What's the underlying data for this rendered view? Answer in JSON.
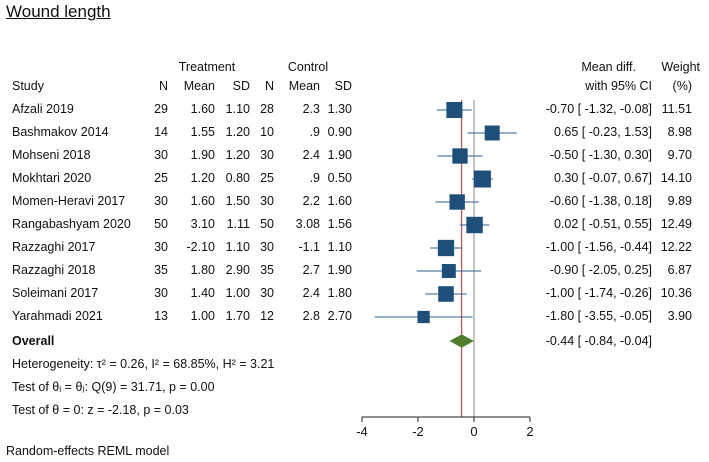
{
  "title": "Wound length",
  "headers": {
    "treatment": "Treatment",
    "control": "Control",
    "study": "Study",
    "n": "N",
    "mean": "Mean",
    "sd": "SD",
    "mean_diff": "Mean diff.",
    "ci": "with 95% CI",
    "weight": "Weight",
    "weight_unit": "(%)"
  },
  "chart_data": {
    "type": "forest",
    "title": "Wound length",
    "xlim": [
      -4,
      2
    ],
    "xticks": [
      -4,
      -2,
      0,
      2
    ],
    "studies": [
      {
        "label": "Afzali 2019",
        "tn": "29",
        "tmean": "1.60",
        "tsd": "1.10",
        "cn": "28",
        "cmean": "2.3",
        "csd": "1.30",
        "md": -0.7,
        "lo": -1.32,
        "hi": -0.08,
        "ci_text": "-0.70 [ -1.32, -0.08]",
        "weight": 11.51,
        "weight_text": "11.51"
      },
      {
        "label": "Bashmakov 2014",
        "tn": "14",
        "tmean": "1.55",
        "tsd": "1.20",
        "cn": "10",
        "cmean": ".9",
        "csd": "0.90",
        "md": 0.65,
        "lo": -0.23,
        "hi": 1.53,
        "ci_text": "0.65 [ -0.23, 1.53]",
        "weight": 8.98,
        "weight_text": "8.98"
      },
      {
        "label": "Mohseni 2018",
        "tn": "30",
        "tmean": "1.90",
        "tsd": "1.20",
        "cn": "30",
        "cmean": "2.4",
        "csd": "1.90",
        "md": -0.5,
        "lo": -1.3,
        "hi": 0.3,
        "ci_text": "-0.50 [ -1.30, 0.30]",
        "weight": 9.7,
        "weight_text": "9.70"
      },
      {
        "label": "Mokhtari 2020",
        "tn": "25",
        "tmean": "1.20",
        "tsd": "0.80",
        "cn": "25",
        "cmean": ".9",
        "csd": "0.50",
        "md": 0.3,
        "lo": -0.07,
        "hi": 0.67,
        "ci_text": "0.30 [ -0.07, 0.67]",
        "weight": 14.1,
        "weight_text": "14.10"
      },
      {
        "label": "Momen-Heravi 2017",
        "tn": "30",
        "tmean": "1.60",
        "tsd": "1.50",
        "cn": "30",
        "cmean": "2.2",
        "csd": "1.60",
        "md": -0.6,
        "lo": -1.38,
        "hi": 0.18,
        "ci_text": "-0.60 [ -1.38, 0.18]",
        "weight": 9.89,
        "weight_text": "9.89"
      },
      {
        "label": "Rangabashyam 2020",
        "tn": "50",
        "tmean": "3.10",
        "tsd": "1.11",
        "cn": "50",
        "cmean": "3.08",
        "csd": "1.56",
        "md": 0.02,
        "lo": -0.51,
        "hi": 0.55,
        "ci_text": "0.02 [ -0.51, 0.55]",
        "weight": 12.49,
        "weight_text": "12.49"
      },
      {
        "label": "Razzaghi 2017",
        "tn": "30",
        "tmean": "-2.10",
        "tsd": "1.10",
        "cn": "30",
        "cmean": "-1.1",
        "csd": "1.10",
        "md": -1.0,
        "lo": -1.56,
        "hi": -0.44,
        "ci_text": "-1.00 [ -1.56, -0.44]",
        "weight": 12.22,
        "weight_text": "12.22"
      },
      {
        "label": "Razzaghi 2018",
        "tn": "35",
        "tmean": "1.80",
        "tsd": "2.90",
        "cn": "35",
        "cmean": "2.7",
        "csd": "1.90",
        "md": -0.9,
        "lo": -2.05,
        "hi": 0.25,
        "ci_text": "-0.90 [ -2.05, 0.25]",
        "weight": 6.87,
        "weight_text": "6.87"
      },
      {
        "label": "Soleimani 2017",
        "tn": "30",
        "tmean": "1.40",
        "tsd": "1.00",
        "cn": "30",
        "cmean": "2.4",
        "csd": "1.80",
        "md": -1.0,
        "lo": -1.74,
        "hi": -0.26,
        "ci_text": "-1.00 [ -1.74, -0.26]",
        "weight": 10.36,
        "weight_text": "10.36"
      },
      {
        "label": "Yarahmadi 2021",
        "tn": "13",
        "tmean": "1.00",
        "tsd": "1.70",
        "cn": "12",
        "cmean": "2.8",
        "csd": "2.70",
        "md": -1.8,
        "lo": -3.55,
        "hi": -0.05,
        "ci_text": "-1.80 [ -3.55, -0.05]",
        "weight": 3.9,
        "weight_text": "3.90"
      }
    ],
    "overall": {
      "label": "Overall",
      "md": -0.44,
      "lo": -0.84,
      "hi": -0.04,
      "ci_text": "-0.44 [ -0.84, -0.04]"
    },
    "colors": {
      "marker": "#1f4e79",
      "ci_line": "#2e5e8e",
      "diamond": "#4f7f2f",
      "overall_line": "#b03030",
      "null_line": "#888888"
    }
  },
  "stats": {
    "heterogeneity": "Heterogeneity: τ² = 0.26, I² = 68.85%, H² = 3.21",
    "test_theta_i": "Test of θᵢ = θⱼ: Q(9) = 31.71, p = 0.00",
    "test_theta_0": "Test of θ = 0: z = -2.18, p = 0.03"
  },
  "footer": "Random-effects REML model"
}
